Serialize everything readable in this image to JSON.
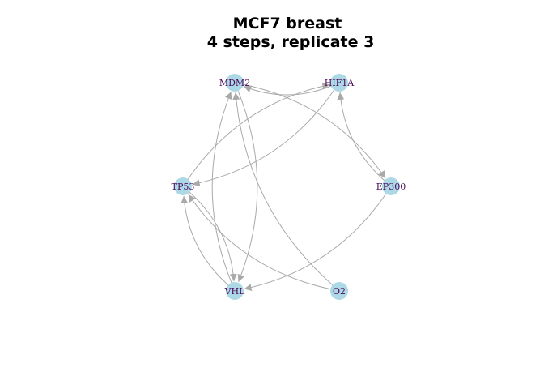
{
  "title": {
    "line1": "MCF7 breast",
    "line2": "4 steps, replicate 3"
  },
  "colors": {
    "node_fill": "#add8e6",
    "node_label": "#4b0a5c",
    "edge": "#a9a9a9",
    "background": "#ffffff"
  },
  "nodes": [
    {
      "id": "MDM2",
      "label": "MDM2"
    },
    {
      "id": "HIF1A",
      "label": "HIF1A"
    },
    {
      "id": "TP53",
      "label": "TP53"
    },
    {
      "id": "EP300",
      "label": "EP300"
    },
    {
      "id": "VHL",
      "label": "VHL"
    },
    {
      "id": "O2",
      "label": "O2"
    }
  ],
  "edges": [
    {
      "source": "HIF1A",
      "target": "MDM2"
    },
    {
      "source": "MDM2",
      "target": "EP300"
    },
    {
      "source": "EP300",
      "target": "HIF1A"
    },
    {
      "source": "TP53",
      "target": "HIF1A"
    },
    {
      "source": "HIF1A",
      "target": "TP53"
    },
    {
      "source": "EP300",
      "target": "VHL"
    },
    {
      "source": "VHL",
      "target": "MDM2"
    },
    {
      "source": "MDM2",
      "target": "VHL"
    },
    {
      "source": "O2",
      "target": "MDM2"
    },
    {
      "source": "O2",
      "target": "TP53"
    },
    {
      "source": "TP53",
      "target": "VHL"
    },
    {
      "source": "VHL",
      "target": "TP53"
    }
  ]
}
